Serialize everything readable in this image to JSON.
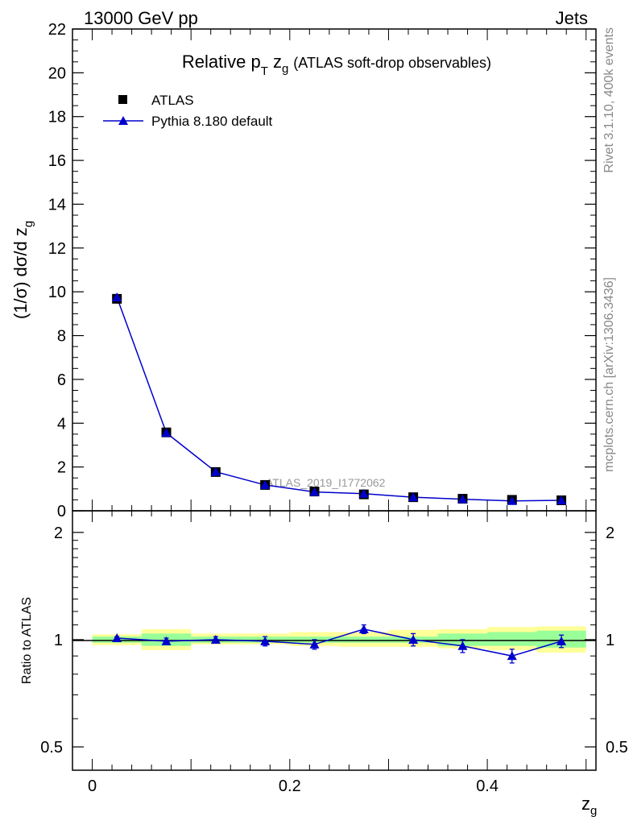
{
  "header": {
    "left": "13000 GeV pp",
    "right": "Jets"
  },
  "side": {
    "rivet": "Rivet 3.1.10,  400k events",
    "mcplots": "mcplots.cern.ch [arXiv:1306.3436]"
  },
  "chart_data": [
    {
      "type": "scatter",
      "title_main": "Relative p",
      "title_sub_T": "T",
      "title_z": "z",
      "title_sub_g": "g",
      "title_rest": "(ATLAS soft-drop observables)",
      "ylabel": "(1/σ) dσ/d z",
      "ylabel_sub": "g",
      "xlim": [
        -0.02,
        0.51
      ],
      "ylim": [
        0,
        22
      ],
      "yticks": [
        "0",
        "2",
        "4",
        "6",
        "8",
        "10",
        "12",
        "14",
        "16",
        "18",
        "20",
        "22"
      ],
      "watermark": "ATLAS_2019_I1772062",
      "legend": [
        "ATLAS",
        "Pythia 8.180 default"
      ],
      "legend_position": "top-left",
      "x": [
        0.025,
        0.075,
        0.125,
        0.175,
        0.225,
        0.275,
        0.325,
        0.375,
        0.425,
        0.475
      ],
      "series": [
        {
          "name": "ATLAS",
          "marker": "square",
          "color": "#000000",
          "values": [
            9.68,
            3.58,
            1.77,
            1.18,
            0.88,
            0.75,
            0.62,
            0.55,
            0.5,
            0.48
          ]
        },
        {
          "name": "Pythia 8.180 default",
          "marker": "triangle",
          "color": "#0000cc",
          "values": [
            9.75,
            3.56,
            1.78,
            1.18,
            0.86,
            0.78,
            0.62,
            0.53,
            0.45,
            0.48
          ]
        }
      ]
    },
    {
      "type": "scatter",
      "ylabel": "Ratio to ATLAS",
      "xlabel": "z",
      "xlabel_sub": "g",
      "xlim": [
        -0.02,
        0.51
      ],
      "ylim": [
        0.43,
        2.3
      ],
      "log_y": true,
      "xticks": [
        "0",
        "0.2",
        "0.4"
      ],
      "yticks": [
        "0.5",
        "1",
        "2"
      ],
      "bands": {
        "stat_color": "#99ff99",
        "total_color": "#ffff99",
        "bins": [
          [
            0.0,
            0.05
          ],
          [
            0.05,
            0.1
          ],
          [
            0.1,
            0.15
          ],
          [
            0.15,
            0.2
          ],
          [
            0.2,
            0.25
          ],
          [
            0.25,
            0.3
          ],
          [
            0.3,
            0.35
          ],
          [
            0.35,
            0.4
          ],
          [
            0.4,
            0.45
          ],
          [
            0.45,
            0.5
          ]
        ],
        "stat_lo": [
          0.98,
          0.96,
          0.98,
          0.98,
          0.98,
          0.98,
          0.98,
          0.96,
          0.96,
          0.95
        ],
        "stat_hi": [
          1.02,
          1.04,
          1.02,
          1.02,
          1.02,
          1.02,
          1.02,
          1.04,
          1.05,
          1.06
        ],
        "total_lo": [
          0.965,
          0.935,
          0.97,
          0.97,
          0.96,
          0.955,
          0.955,
          0.945,
          0.935,
          0.92
        ],
        "total_hi": [
          1.035,
          1.07,
          1.04,
          1.04,
          1.05,
          1.05,
          1.065,
          1.07,
          1.085,
          1.09
        ]
      },
      "ratio": {
        "name": "Pythia 8.180 default",
        "color": "#0000cc",
        "x": [
          0.025,
          0.075,
          0.125,
          0.175,
          0.225,
          0.275,
          0.325,
          0.375,
          0.425,
          0.475
        ],
        "values": [
          1.01,
          0.99,
          1.0,
          0.99,
          0.97,
          1.07,
          1.0,
          0.96,
          0.9,
          0.99
        ],
        "err_lo": [
          0.01,
          0.02,
          0.02,
          0.03,
          0.03,
          0.03,
          0.04,
          0.04,
          0.04,
          0.04
        ],
        "err_hi": [
          0.01,
          0.02,
          0.02,
          0.03,
          0.03,
          0.03,
          0.04,
          0.04,
          0.04,
          0.04
        ]
      }
    }
  ]
}
